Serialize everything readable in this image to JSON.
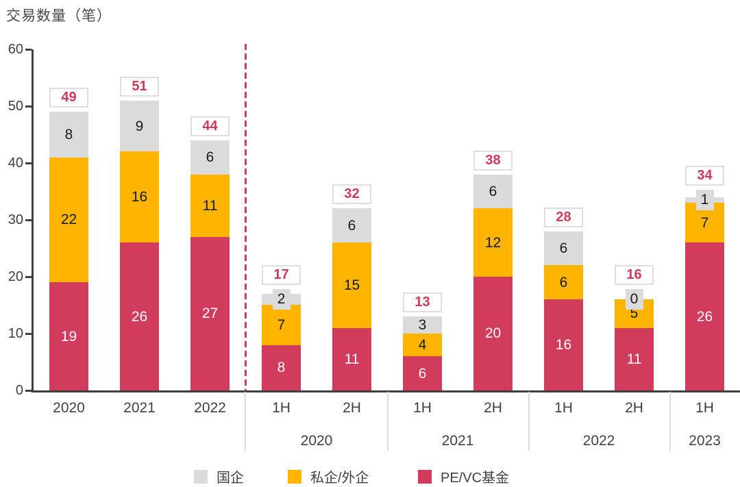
{
  "title": "交易数量（笔）",
  "colors": {
    "soe_gray": "#dbdbdb",
    "private_orange": "#ffb400",
    "pevc_crimson": "#d23c5c",
    "axis": "#404040",
    "total_text": "#cf3a5b",
    "total_box_border": "#dedede",
    "separator": "#dcdcdc"
  },
  "legend": [
    {
      "label": "国企",
      "color": "#dbdbdb"
    },
    {
      "label": "私企/外企",
      "color": "#ffb400"
    },
    {
      "label": "PE/VC基金",
      "color": "#d23c5c"
    }
  ],
  "chart_data": {
    "type": "bar",
    "stacked": true,
    "title": "交易数量（笔）",
    "ylabel": "交易数量（笔）",
    "xlabel": "",
    "ylim": [
      0,
      60
    ],
    "yticks": [
      0,
      10,
      20,
      30,
      40,
      50,
      60
    ],
    "grid": false,
    "legend_position": "bottom",
    "categories": [
      "2020",
      "2021",
      "2022",
      "1H",
      "2H",
      "1H",
      "2H",
      "1H",
      "2H",
      "1H"
    ],
    "group_row_labels": [
      {
        "label": "2020",
        "from_index": 3,
        "to_index": 4
      },
      {
        "label": "2021",
        "from_index": 5,
        "to_index": 6
      },
      {
        "label": "2022",
        "from_index": 7,
        "to_index": 8
      },
      {
        "label": "2023",
        "from_index": 9,
        "to_index": 9
      }
    ],
    "series": [
      {
        "name": "PE/VC基金",
        "color": "#d23c5c",
        "label_color": "#ffffff",
        "values": [
          19,
          26,
          27,
          8,
          11,
          6,
          20,
          16,
          11,
          26
        ]
      },
      {
        "name": "私企/外企",
        "color": "#ffb400",
        "label_color": "#1a1a1a",
        "values": [
          22,
          16,
          11,
          7,
          15,
          4,
          12,
          6,
          5,
          7
        ]
      },
      {
        "name": "国企",
        "color": "#dbdbdb",
        "label_color": "#1a1a1a",
        "values": [
          8,
          9,
          6,
          2,
          6,
          3,
          6,
          6,
          0,
          1
        ]
      }
    ],
    "totals": [
      49,
      51,
      44,
      17,
      32,
      13,
      38,
      28,
      16,
      34
    ],
    "annual_vs_half_divider_after_index": 2
  }
}
